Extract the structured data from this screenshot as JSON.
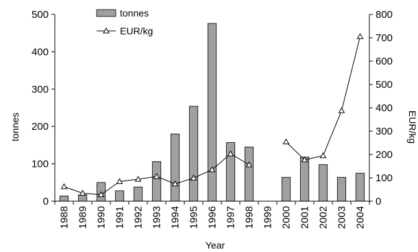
{
  "chart_data": {
    "type": "bar",
    "categories": [
      "1988",
      "1989",
      "1990",
      "1991",
      "1992",
      "1993",
      "1994",
      "1995",
      "1996",
      "1997",
      "1998",
      "1999",
      "2000",
      "2001",
      "2002",
      "2003",
      "2004"
    ],
    "series": [
      {
        "name": "tonnes",
        "type": "bar",
        "axis": "left",
        "values": [
          14,
          17,
          50,
          28,
          38,
          106,
          180,
          254,
          476,
          157,
          145,
          0,
          64,
          118,
          98,
          64,
          75
        ],
        "color": "#a0a0a0"
      },
      {
        "name": "EUR/kg",
        "type": "line",
        "axis": "right",
        "marker": "triangle-open",
        "values": [
          62,
          34,
          28,
          84,
          94,
          106,
          74,
          99,
          135,
          203,
          156,
          null,
          254,
          177,
          195,
          388,
          705
        ],
        "color": "#000000"
      }
    ],
    "title": "",
    "xlabel": "Year",
    "ylabel": "tonnes",
    "y2label": "EUR/kg",
    "ylim": [
      0,
      500
    ],
    "y2lim": [
      0,
      800
    ],
    "yticks": [
      "0",
      "100",
      "200",
      "300",
      "400",
      "500"
    ],
    "y2ticks": [
      "0",
      "100",
      "200",
      "300",
      "400",
      "500",
      "600",
      "700",
      "800"
    ],
    "grid": false,
    "legend_position": "top-left"
  }
}
